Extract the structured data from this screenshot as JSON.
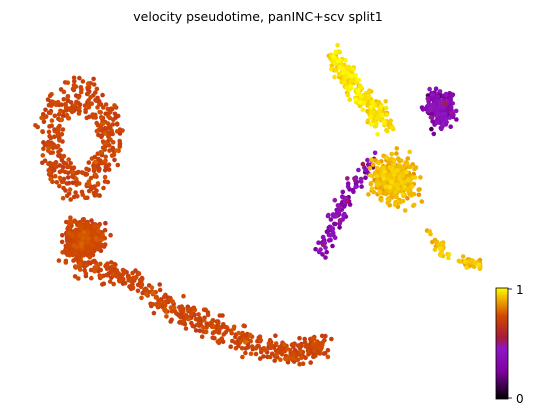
{
  "chart_data": {
    "type": "scatter",
    "title": "velocity pseudotime, panINC+scv split1",
    "xlabel": "",
    "ylabel": "",
    "grid": false,
    "axes_visible": false,
    "colorbar": {
      "colormap": "gnuplot",
      "min": 0,
      "max": 1,
      "tick_labels": [
        "1",
        "0"
      ],
      "placement": "bottom-right"
    },
    "clusters": [
      {
        "region": "left trajectory, upper loop",
        "pseudotime": 0.72,
        "count": 420
      },
      {
        "region": "left trajectory, dense middle blob",
        "pseudotime": 0.72,
        "count": 520
      },
      {
        "region": "left trajectory, lower tail",
        "pseudotime": 0.72,
        "count": 520
      },
      {
        "region": "right structure, upper-left arm",
        "pseudotime": 0.95,
        "count": 260
      },
      {
        "region": "right structure, center body",
        "pseudotime": 0.9,
        "count": 380
      },
      {
        "region": "right structure, upper-right cluster",
        "pseudotime": 0.3,
        "count": 230
      },
      {
        "region": "right structure, lower-left arm",
        "pseudotime": 0.35,
        "count": 110
      },
      {
        "region": "right structure, lower-right tail",
        "pseudotime": 0.92,
        "count": 60
      }
    ]
  }
}
